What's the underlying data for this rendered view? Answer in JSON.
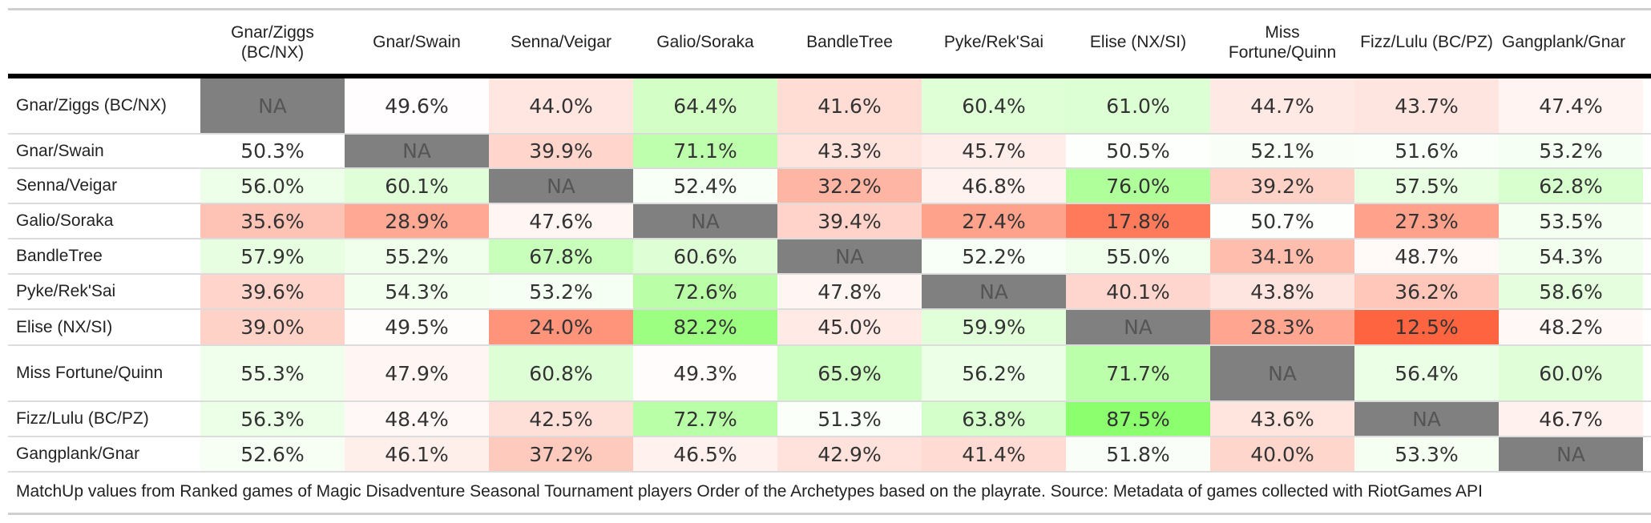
{
  "chart_data": {
    "type": "heatmap",
    "columns": [
      "Gnar/Ziggs (BC/NX)",
      "Gnar/Swain",
      "Senna/Veigar",
      "Galio/Soraka",
      "BandleTree",
      "Pyke/Rek'Sai",
      "Elise (NX/SI)",
      "Miss Fortune/Quinn",
      "Fizz/Lulu (BC/PZ)",
      "Gangplank/Gnar"
    ],
    "rows": [
      "Gnar/Ziggs (BC/NX)",
      "Gnar/Swain",
      "Senna/Veigar",
      "Galio/Soraka",
      "BandleTree",
      "Pyke/Rek'Sai",
      "Elise (NX/SI)",
      "Miss Fortune/Quinn",
      "Fizz/Lulu (BC/PZ)",
      "Gangplank/Gnar"
    ],
    "values": [
      [
        null,
        49.6,
        44.0,
        64.4,
        41.6,
        60.4,
        61.0,
        44.7,
        43.7,
        47.4
      ],
      [
        50.3,
        null,
        39.9,
        71.1,
        43.3,
        45.7,
        50.5,
        52.1,
        51.6,
        53.2
      ],
      [
        56.0,
        60.1,
        null,
        52.4,
        32.2,
        46.8,
        76.0,
        39.2,
        57.5,
        62.8
      ],
      [
        35.6,
        28.9,
        47.6,
        null,
        39.4,
        27.4,
        17.8,
        50.7,
        27.3,
        53.5
      ],
      [
        57.9,
        55.2,
        67.8,
        60.6,
        null,
        52.2,
        55.0,
        34.1,
        48.7,
        54.3
      ],
      [
        39.6,
        54.3,
        53.2,
        72.6,
        47.8,
        null,
        40.1,
        43.8,
        36.2,
        58.6
      ],
      [
        39.0,
        49.5,
        24.0,
        82.2,
        45.0,
        59.9,
        null,
        28.3,
        12.5,
        48.2
      ],
      [
        55.3,
        47.9,
        60.8,
        49.3,
        65.9,
        56.2,
        71.7,
        null,
        56.4,
        60.0
      ],
      [
        56.3,
        48.4,
        42.5,
        72.7,
        51.3,
        63.8,
        87.5,
        43.6,
        null,
        46.7
      ],
      [
        52.6,
        46.1,
        37.2,
        46.5,
        42.9,
        41.4,
        51.8,
        40.0,
        53.3,
        null
      ]
    ],
    "missing_label": "NA",
    "value_suffix": "%",
    "scale": {
      "low_color": "#ff6440",
      "mid_color": "#ffffff",
      "high_color": "#8cff6e",
      "midpoint": 50
    },
    "na_color": "#808080",
    "caption": "MatchUp values from Ranked games of Magic Disadventure Seasonal Tournament players Order of the Archetypes based on the playrate. Source: Metadata of games collected with RiotGames API"
  }
}
